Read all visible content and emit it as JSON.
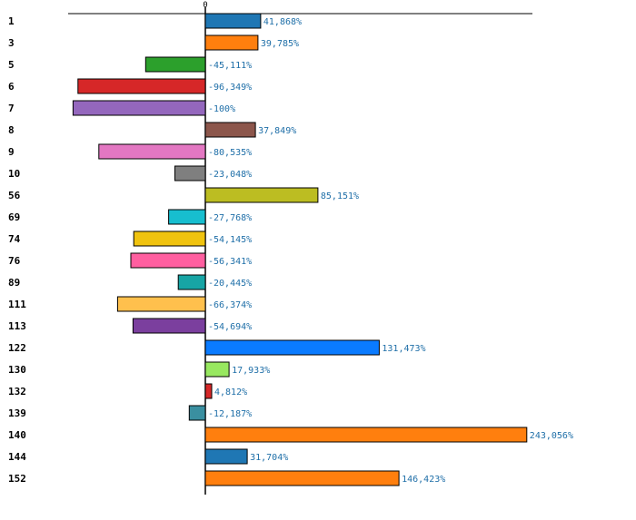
{
  "chart_data": {
    "type": "bar",
    "orientation": "horizontal",
    "title": "",
    "xlabel": "",
    "ylabel": "",
    "zero_label": "0",
    "xlim": [
      -100,
      243.056
    ],
    "categories": [
      "1",
      "3",
      "5",
      "6",
      "7",
      "8",
      "9",
      "10",
      "56",
      "69",
      "74",
      "76",
      "89",
      "111",
      "113",
      "122",
      "130",
      "132",
      "139",
      "140",
      "144",
      "152"
    ],
    "values": [
      41.868,
      39.785,
      -45.111,
      -96.349,
      -100,
      37.849,
      -80.535,
      -23.048,
      85.151,
      -27.768,
      -54.145,
      -56.341,
      -20.445,
      -66.374,
      -54.694,
      131.473,
      17.933,
      4.812,
      -12.187,
      243.056,
      31.704,
      146.423
    ],
    "value_labels": [
      "41,868%",
      "39,785%",
      "-45,111%",
      "-96,349%",
      "-100%",
      "37,849%",
      "-80,535%",
      "-23,048%",
      "85,151%",
      "-27,768%",
      "-54,145%",
      "-56,341%",
      "-20,445%",
      "-66,374%",
      "-54,694%",
      "131,473%",
      "17,933%",
      "4,812%",
      "-12,187%",
      "243,056%",
      "31,704%",
      "146,423%"
    ],
    "colors": [
      "#1f77b4",
      "#ff7f0e",
      "#2ca02c",
      "#d62728",
      "#9467bd",
      "#8c564b",
      "#e377c2",
      "#7f7f7f",
      "#bcbd22",
      "#17becf",
      "#f0c30f",
      "#ff5fa0",
      "#17a5a5",
      "#ffc04d",
      "#7b3f9e",
      "#0a7bff",
      "#98e860",
      "#d62728",
      "#3a8fa0",
      "#ff7f0e",
      "#1f77b4",
      "#ff7f0e"
    ],
    "label_color": "#1f6fa8"
  }
}
